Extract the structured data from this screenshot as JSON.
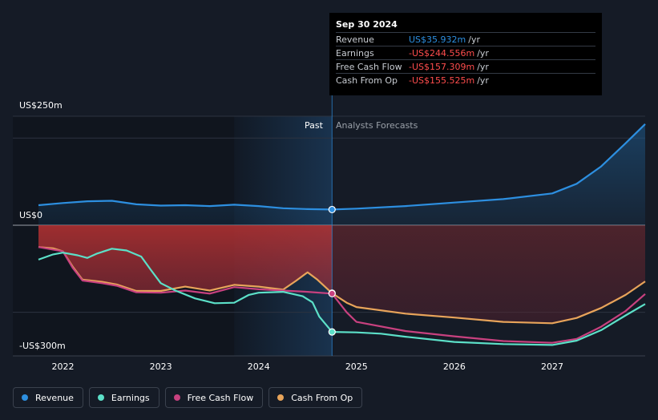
{
  "colors": {
    "background": "#151b26",
    "revenue": "#2d8fe0",
    "earnings": "#5ce0c8",
    "free_cash_flow": "#c8417f",
    "cash_from_op": "#e8a45a",
    "tooltip_positive": "#2d8fe0",
    "tooltip_negative": "#ff4d4d"
  },
  "tooltip": {
    "date": "Sep 30 2024",
    "rows": [
      {
        "label": "Revenue",
        "value": "US$35.932m",
        "unit": "/yr",
        "sign": "positive"
      },
      {
        "label": "Earnings",
        "value": "-US$244.556m",
        "unit": "/yr",
        "sign": "negative"
      },
      {
        "label": "Free Cash Flow",
        "value": "-US$157.309m",
        "unit": "/yr",
        "sign": "negative"
      },
      {
        "label": "Cash From Op",
        "value": "-US$155.525m",
        "unit": "/yr",
        "sign": "negative"
      }
    ]
  },
  "labels": {
    "past": "Past",
    "forecast": "Analysts Forecasts"
  },
  "chart_data": {
    "type": "area",
    "y_tick_labels": [
      "US$250m",
      "US$0",
      "-US$300m"
    ],
    "y_ticks": [
      250,
      0,
      -300
    ],
    "ylim": [
      -300,
      250
    ],
    "xlim": [
      2021.75,
      2027.95
    ],
    "x_tick_labels": [
      "2022",
      "2023",
      "2024",
      "2025",
      "2026",
      "2027"
    ],
    "x_ticks": [
      2022,
      2023,
      2024,
      2025,
      2026,
      2027
    ],
    "past_end": 2024.75,
    "highlight_start": 2023.75,
    "grid": true,
    "legend_position": "bottom-left",
    "series": [
      {
        "name": "Revenue",
        "key": "revenue",
        "points": [
          [
            2021.75,
            46
          ],
          [
            2022.0,
            51
          ],
          [
            2022.25,
            55
          ],
          [
            2022.5,
            56
          ],
          [
            2022.75,
            48
          ],
          [
            2023.0,
            45
          ],
          [
            2023.25,
            46
          ],
          [
            2023.5,
            44
          ],
          [
            2023.75,
            47
          ],
          [
            2024.0,
            44
          ],
          [
            2024.25,
            39
          ],
          [
            2024.5,
            37
          ],
          [
            2024.75,
            36
          ],
          [
            2025.0,
            38
          ],
          [
            2025.5,
            44
          ],
          [
            2026.0,
            52
          ],
          [
            2026.5,
            60
          ],
          [
            2027.0,
            73
          ],
          [
            2027.25,
            95
          ],
          [
            2027.5,
            135
          ],
          [
            2027.75,
            188
          ],
          [
            2027.95,
            232
          ]
        ]
      },
      {
        "name": "Earnings",
        "key": "earnings",
        "points": [
          [
            2021.75,
            -79
          ],
          [
            2021.9,
            -67
          ],
          [
            2022.0,
            -63
          ],
          [
            2022.15,
            -69
          ],
          [
            2022.25,
            -75
          ],
          [
            2022.35,
            -65
          ],
          [
            2022.5,
            -54
          ],
          [
            2022.65,
            -58
          ],
          [
            2022.8,
            -72
          ],
          [
            2022.9,
            -103
          ],
          [
            2023.0,
            -133
          ],
          [
            2023.15,
            -150
          ],
          [
            2023.35,
            -168
          ],
          [
            2023.55,
            -179
          ],
          [
            2023.75,
            -178
          ],
          [
            2023.9,
            -160
          ],
          [
            2024.0,
            -155
          ],
          [
            2024.25,
            -153
          ],
          [
            2024.45,
            -163
          ],
          [
            2024.55,
            -177
          ],
          [
            2024.62,
            -210
          ],
          [
            2024.75,
            -245
          ],
          [
            2025.0,
            -246
          ],
          [
            2025.25,
            -249
          ],
          [
            2025.5,
            -256
          ],
          [
            2026.0,
            -268
          ],
          [
            2026.5,
            -273
          ],
          [
            2027.0,
            -275
          ],
          [
            2027.25,
            -265
          ],
          [
            2027.5,
            -241
          ],
          [
            2027.75,
            -207
          ],
          [
            2027.95,
            -181
          ]
        ]
      },
      {
        "name": "Free Cash Flow",
        "key": "free_cash_flow",
        "points": [
          [
            2021.75,
            -50
          ],
          [
            2021.9,
            -56
          ],
          [
            2022.0,
            -60
          ],
          [
            2022.1,
            -98
          ],
          [
            2022.2,
            -127
          ],
          [
            2022.4,
            -133
          ],
          [
            2022.55,
            -139
          ],
          [
            2022.75,
            -154
          ],
          [
            2023.0,
            -155
          ],
          [
            2023.25,
            -150
          ],
          [
            2023.5,
            -157
          ],
          [
            2023.75,
            -142
          ],
          [
            2024.0,
            -147
          ],
          [
            2024.25,
            -150
          ],
          [
            2024.5,
            -153
          ],
          [
            2024.75,
            -157
          ],
          [
            2024.9,
            -200
          ],
          [
            2025.0,
            -222
          ],
          [
            2025.5,
            -243
          ],
          [
            2026.0,
            -255
          ],
          [
            2026.5,
            -266
          ],
          [
            2027.0,
            -270
          ],
          [
            2027.25,
            -261
          ],
          [
            2027.5,
            -233
          ],
          [
            2027.75,
            -197
          ],
          [
            2027.95,
            -158
          ]
        ]
      },
      {
        "name": "Cash From Op",
        "key": "cash_from_op",
        "points": [
          [
            2021.75,
            -50
          ],
          [
            2021.9,
            -53
          ],
          [
            2022.0,
            -60
          ],
          [
            2022.1,
            -95
          ],
          [
            2022.2,
            -125
          ],
          [
            2022.4,
            -130
          ],
          [
            2022.55,
            -136
          ],
          [
            2022.75,
            -151
          ],
          [
            2023.0,
            -151
          ],
          [
            2023.25,
            -141
          ],
          [
            2023.5,
            -150
          ],
          [
            2023.75,
            -137
          ],
          [
            2024.0,
            -141
          ],
          [
            2024.25,
            -148
          ],
          [
            2024.38,
            -128
          ],
          [
            2024.5,
            -108
          ],
          [
            2024.6,
            -125
          ],
          [
            2024.75,
            -156
          ],
          [
            2024.9,
            -178
          ],
          [
            2025.0,
            -188
          ],
          [
            2025.5,
            -203
          ],
          [
            2026.0,
            -212
          ],
          [
            2026.5,
            -222
          ],
          [
            2027.0,
            -225
          ],
          [
            2027.25,
            -213
          ],
          [
            2027.5,
            -190
          ],
          [
            2027.75,
            -160
          ],
          [
            2027.95,
            -129
          ]
        ]
      }
    ]
  },
  "legend": [
    {
      "label": "Revenue",
      "key": "revenue"
    },
    {
      "label": "Earnings",
      "key": "earnings"
    },
    {
      "label": "Free Cash Flow",
      "key": "free_cash_flow"
    },
    {
      "label": "Cash From Op",
      "key": "cash_from_op"
    }
  ]
}
